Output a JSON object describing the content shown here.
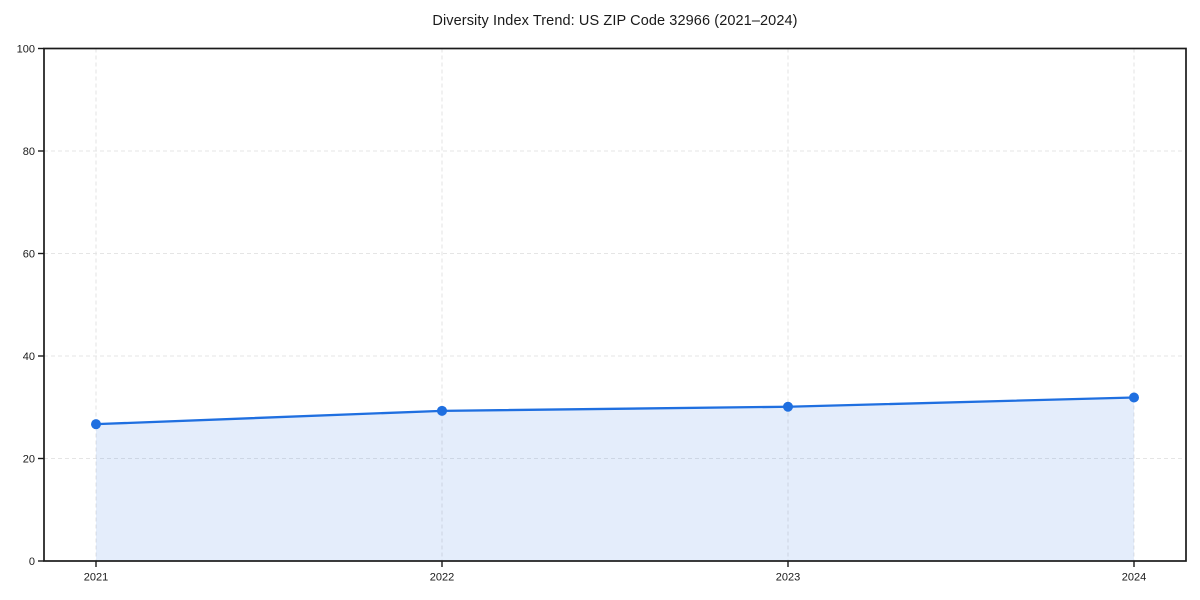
{
  "page": {
    "background": "#ffffff"
  },
  "chart_data": {
    "type": "area",
    "title": "Diversity Index Trend: US ZIP Code 32966 (2021–2024)",
    "categories": [
      "2021",
      "2022",
      "2023",
      "2024"
    ],
    "series": [
      {
        "name": "Diversity Index",
        "values": [
          26.7,
          29.3,
          30.1,
          31.9
        ]
      }
    ],
    "xlabel": "",
    "ylabel": "",
    "ylim": [
      0,
      100
    ],
    "yticks": [
      0,
      20,
      40,
      60,
      80,
      100
    ],
    "grid": true,
    "grid_style": "dashed",
    "legend": "none",
    "colors": {
      "line": "#1f6fe0",
      "marker": "#1f6fe0",
      "fill": "#1f6fe0",
      "fill_opacity": 0.12,
      "grid": "#e5e5e5",
      "axis": "#1a1a1a",
      "text": "#1a1a1a"
    }
  }
}
